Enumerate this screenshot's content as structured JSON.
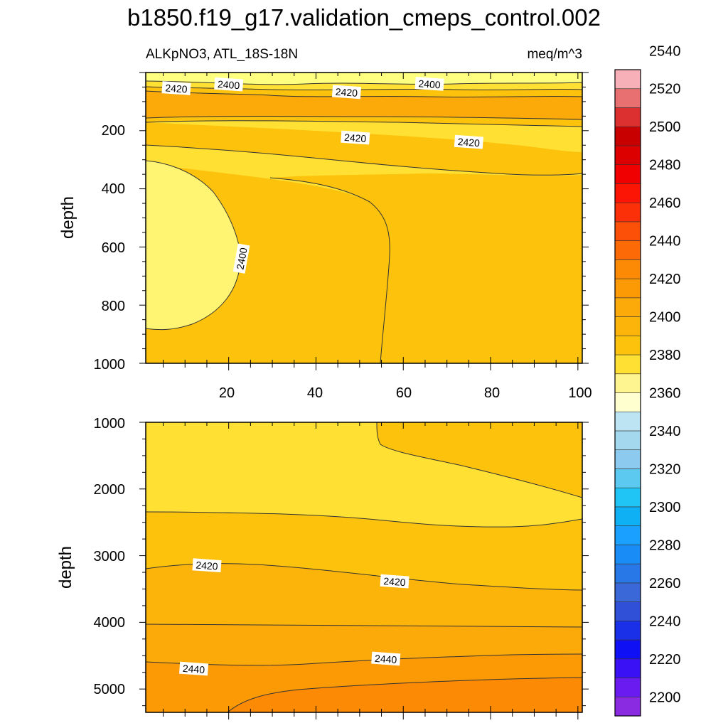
{
  "chart_data": [
    {
      "type": "contour",
      "title": "b1850.f19_g17.validation_cmeps_control.002",
      "subtitle_left": "ALKpNO3, ATL_18S-18N",
      "subtitle_right": "meq/m^3",
      "ylabel": "depth",
      "xlabel": "",
      "xlim": [
        1,
        101
      ],
      "ylim": [
        0,
        1000
      ],
      "y_reversed": true,
      "x_ticks": [
        "20",
        "40",
        "60",
        "80",
        "100"
      ],
      "y_ticks": [
        "200",
        "400",
        "600",
        "800",
        "1000"
      ],
      "region_colors_from_top": [
        "#ffff80",
        "#ffe033",
        "#fcc20c",
        "#fca90a",
        "#fcc20c",
        "#ffe033",
        "#fff572"
      ],
      "contour_labels": [
        {
          "text": "2420",
          "x": 8,
          "y": 55
        },
        {
          "text": "2400",
          "x": 20,
          "y": 42
        },
        {
          "text": "2420",
          "x": 47,
          "y": 68
        },
        {
          "text": "2400",
          "x": 66,
          "y": 40
        },
        {
          "text": "2420",
          "x": 49,
          "y": 225
        },
        {
          "text": "2420",
          "x": 75,
          "y": 240
        },
        {
          "text": "2400",
          "x": 23,
          "y": 640
        }
      ]
    },
    {
      "type": "contour",
      "ylabel": "depth",
      "xlim": [
        1,
        101
      ],
      "ylim": [
        1000,
        5350
      ],
      "y_reversed": true,
      "y_ticks": [
        "1000",
        "2000",
        "3000",
        "4000",
        "5000"
      ],
      "contour_labels": [
        {
          "text": "2420",
          "x": 15,
          "y": 3150
        },
        {
          "text": "2420",
          "x": 58,
          "y": 3390
        },
        {
          "text": "2440",
          "x": 12,
          "y": 4700
        },
        {
          "text": "2440",
          "x": 56,
          "y": 4550
        }
      ]
    }
  ],
  "colorbar": {
    "levels": [
      "2200",
      "2220",
      "2240",
      "2260",
      "2280",
      "2300",
      "2320",
      "2340",
      "2360",
      "2380",
      "2400",
      "2420",
      "2440",
      "2460",
      "2480",
      "2500",
      "2520",
      "2540"
    ],
    "colors_bottom_to_top": [
      "#8a2be2",
      "#6a1cf0",
      "#3a10f5",
      "#1010f5",
      "#1a30e8",
      "#3050d8",
      "#3a68d8",
      "#2878e8",
      "#1a8cf5",
      "#1aa0ff",
      "#10b0f5",
      "#20c4f5",
      "#5ccaf0",
      "#8ccaf0",
      "#a4d8ee",
      "#bce4f2",
      "#ffffd0",
      "#fff590",
      "#ffe033",
      "#fcc20c",
      "#fcb40a",
      "#fca90a",
      "#fc9a06",
      "#fc8a04",
      "#fc6a08",
      "#fc5008",
      "#fc3008",
      "#fc1404",
      "#f00000",
      "#dc0000",
      "#c80000",
      "#dc3030",
      "#e87070",
      "#f8b0b8"
    ]
  }
}
